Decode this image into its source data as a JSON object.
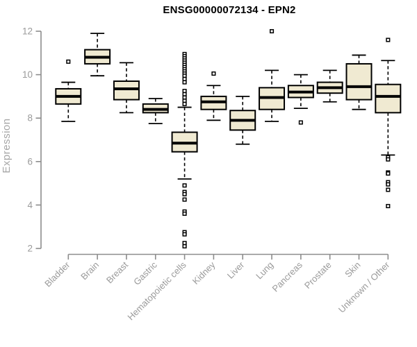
{
  "chart_data": {
    "type": "boxplot",
    "title": "ENSG00000072134 - EPN2",
    "ylabel": "Expression",
    "xlabel": "",
    "ylim": [
      2,
      12
    ],
    "yticks": [
      2,
      4,
      6,
      8,
      10,
      12
    ],
    "grid": false,
    "legend": "none",
    "colors": {
      "box_fill": "#f0ead2",
      "box_stroke": "#000000",
      "median": "#000000",
      "axis": "#8c8c8c",
      "tick_label": "#9a9a9a",
      "axis_title": "#a6a6a6",
      "title": "#000000",
      "background": "#ffffff"
    },
    "categories": [
      "Bladder",
      "Brain",
      "Breast",
      "Gastric",
      "Hematopoietic cells",
      "Kidney",
      "Liver",
      "Lung",
      "Pancreas",
      "Prostate",
      "Skin",
      "Unknown / Other"
    ],
    "series": [
      {
        "category": "Bladder",
        "whisker_low": 7.85,
        "q1": 8.65,
        "median": 9.0,
        "q3": 9.35,
        "whisker_high": 9.65,
        "outliers": [
          10.6
        ]
      },
      {
        "category": "Brain",
        "whisker_low": 9.95,
        "q1": 10.5,
        "median": 10.8,
        "q3": 11.15,
        "whisker_high": 11.9,
        "outliers": []
      },
      {
        "category": "Breast",
        "whisker_low": 8.25,
        "q1": 8.85,
        "median": 9.35,
        "q3": 9.7,
        "whisker_high": 10.55,
        "outliers": []
      },
      {
        "category": "Gastric",
        "whisker_low": 7.75,
        "q1": 8.25,
        "median": 8.4,
        "q3": 8.65,
        "whisker_high": 8.9,
        "outliers": []
      },
      {
        "category": "Hematopoietic cells",
        "whisker_low": 5.2,
        "q1": 6.45,
        "median": 6.85,
        "q3": 7.35,
        "whisker_high": 8.5,
        "outliers": [
          10.95,
          10.85,
          10.75,
          10.65,
          10.55,
          10.45,
          10.35,
          10.25,
          10.15,
          10.05,
          9.95,
          9.8,
          9.65,
          9.25,
          9.1,
          8.95,
          8.8,
          8.65,
          4.9,
          4.6,
          4.5,
          4.25,
          3.7,
          3.6,
          2.75,
          2.65,
          2.25,
          2.1
        ]
      },
      {
        "category": "Kidney",
        "whisker_low": 7.9,
        "q1": 8.4,
        "median": 8.75,
        "q3": 9.0,
        "whisker_high": 9.5,
        "outliers": [
          10.05
        ]
      },
      {
        "category": "Liver",
        "whisker_low": 6.8,
        "q1": 7.45,
        "median": 7.9,
        "q3": 8.35,
        "whisker_high": 9.0,
        "outliers": []
      },
      {
        "category": "Lung",
        "whisker_low": 7.85,
        "q1": 8.4,
        "median": 8.95,
        "q3": 9.4,
        "whisker_high": 10.2,
        "outliers": [
          12.0
        ]
      },
      {
        "category": "Pancreas",
        "whisker_low": 8.45,
        "q1": 8.95,
        "median": 9.2,
        "q3": 9.5,
        "whisker_high": 10.0,
        "outliers": [
          7.8
        ]
      },
      {
        "category": "Prostate",
        "whisker_low": 8.75,
        "q1": 9.15,
        "median": 9.4,
        "q3": 9.65,
        "whisker_high": 10.2,
        "outliers": []
      },
      {
        "category": "Skin",
        "whisker_low": 8.4,
        "q1": 8.85,
        "median": 9.45,
        "q3": 10.5,
        "whisker_high": 10.9,
        "outliers": []
      },
      {
        "category": "Unknown / Other",
        "whisker_low": 6.3,
        "q1": 8.25,
        "median": 9.0,
        "q3": 9.55,
        "whisker_high": 10.65,
        "outliers": [
          11.6,
          6.2,
          6.1,
          5.5,
          5.45,
          5.05,
          4.95,
          4.7,
          3.95
        ]
      }
    ]
  }
}
